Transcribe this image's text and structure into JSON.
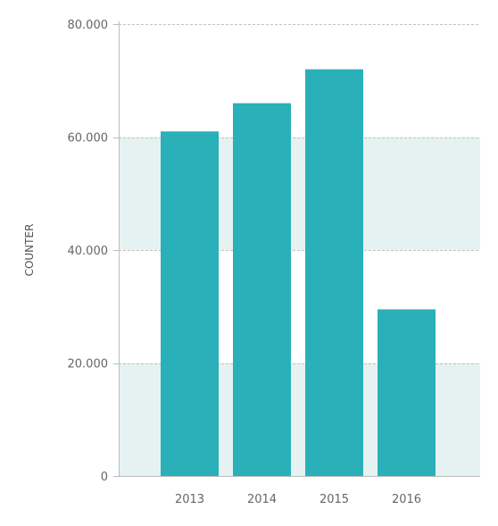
{
  "chart_data": {
    "type": "bar",
    "title": "",
    "xlabel": "",
    "ylabel": "COUNTER",
    "categories": [
      "2013",
      "2014",
      "2015",
      "2016"
    ],
    "values": [
      61000,
      66000,
      72000,
      29500
    ],
    "ylim": [
      0,
      80000
    ],
    "yticks": [
      0,
      20000,
      40000,
      60000,
      80000
    ],
    "ytick_labels": [
      "0",
      "20.000",
      "40.000",
      "60.000",
      "80.000"
    ],
    "grid": true,
    "alternating_bands": true,
    "colors": {
      "bar": "#2ab0b8",
      "band": "#e6f2f2",
      "gridline": "#c4c4c4",
      "axis": "#bdbdbd",
      "text": "#666666"
    }
  }
}
